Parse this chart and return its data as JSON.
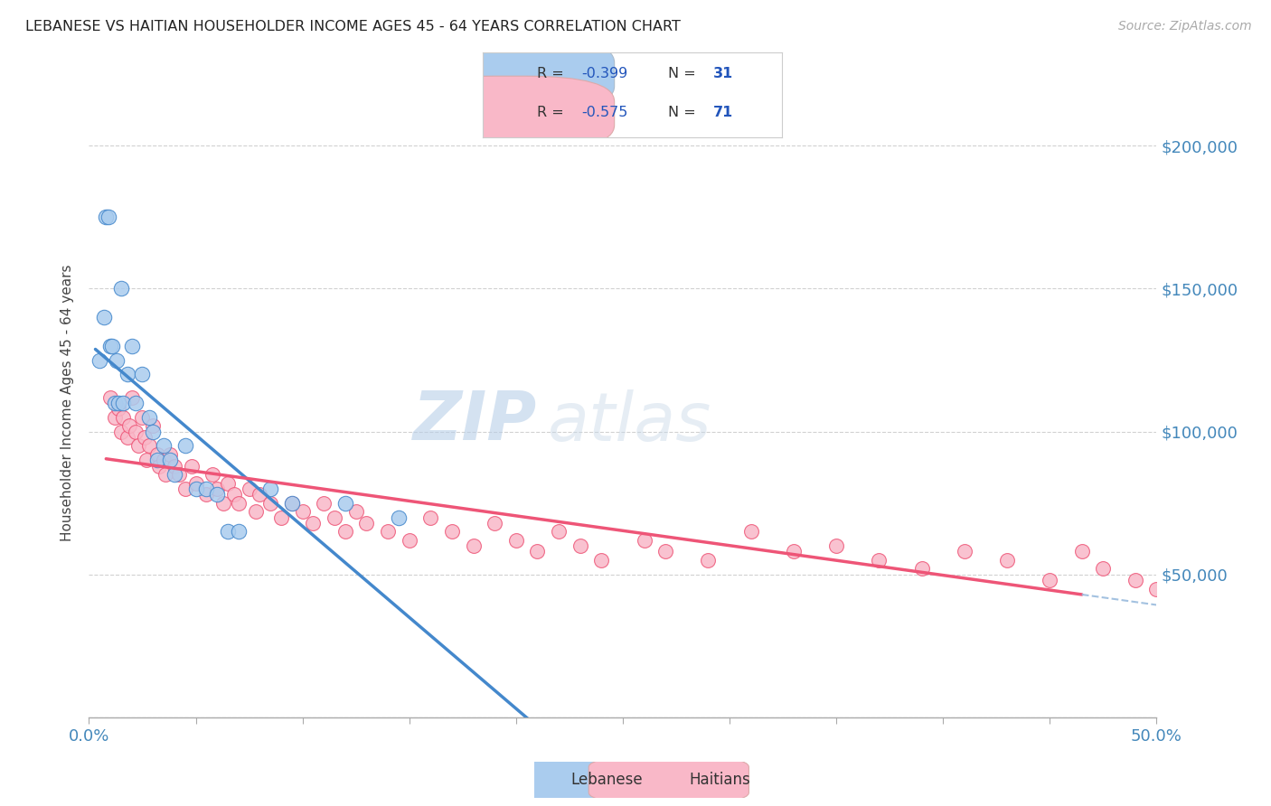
{
  "title": "LEBANESE VS HAITIAN HOUSEHOLDER INCOME AGES 45 - 64 YEARS CORRELATION CHART",
  "source": "Source: ZipAtlas.com",
  "ylabel": "Householder Income Ages 45 - 64 years",
  "xlim": [
    0.0,
    0.5
  ],
  "ylim": [
    0,
    220000
  ],
  "background_color": "#ffffff",
  "grid_color": "#cccccc",
  "watermark_zip": "ZIP",
  "watermark_atlas": "atlas",
  "lebanese_color": "#aaccee",
  "haitian_color": "#f9b8c8",
  "lebanese_line_color": "#4488cc",
  "haitian_line_color": "#ee5577",
  "dash_color": "#99bbdd",
  "lebanese_x": [
    0.005,
    0.007,
    0.008,
    0.009,
    0.01,
    0.011,
    0.012,
    0.013,
    0.014,
    0.015,
    0.016,
    0.018,
    0.02,
    0.022,
    0.025,
    0.028,
    0.03,
    0.032,
    0.035,
    0.038,
    0.04,
    0.045,
    0.05,
    0.055,
    0.06,
    0.065,
    0.07,
    0.085,
    0.095,
    0.12,
    0.145
  ],
  "lebanese_y": [
    125000,
    140000,
    175000,
    175000,
    130000,
    130000,
    110000,
    125000,
    110000,
    150000,
    110000,
    120000,
    130000,
    110000,
    120000,
    105000,
    100000,
    90000,
    95000,
    90000,
    85000,
    95000,
    80000,
    80000,
    78000,
    65000,
    65000,
    80000,
    75000,
    75000,
    70000
  ],
  "haitian_x": [
    0.01,
    0.012,
    0.014,
    0.015,
    0.016,
    0.018,
    0.019,
    0.02,
    0.022,
    0.023,
    0.025,
    0.026,
    0.027,
    0.028,
    0.03,
    0.032,
    0.033,
    0.035,
    0.036,
    0.038,
    0.04,
    0.042,
    0.045,
    0.048,
    0.05,
    0.055,
    0.058,
    0.06,
    0.063,
    0.065,
    0.068,
    0.07,
    0.075,
    0.078,
    0.08,
    0.085,
    0.09,
    0.095,
    0.1,
    0.105,
    0.11,
    0.115,
    0.12,
    0.125,
    0.13,
    0.14,
    0.15,
    0.16,
    0.17,
    0.18,
    0.19,
    0.2,
    0.21,
    0.22,
    0.23,
    0.24,
    0.26,
    0.27,
    0.29,
    0.31,
    0.33,
    0.35,
    0.37,
    0.39,
    0.41,
    0.43,
    0.45,
    0.465,
    0.475,
    0.49,
    0.5
  ],
  "haitian_y": [
    112000,
    105000,
    108000,
    100000,
    105000,
    98000,
    102000,
    112000,
    100000,
    95000,
    105000,
    98000,
    90000,
    95000,
    102000,
    92000,
    88000,
    90000,
    85000,
    92000,
    88000,
    85000,
    80000,
    88000,
    82000,
    78000,
    85000,
    80000,
    75000,
    82000,
    78000,
    75000,
    80000,
    72000,
    78000,
    75000,
    70000,
    75000,
    72000,
    68000,
    75000,
    70000,
    65000,
    72000,
    68000,
    65000,
    62000,
    70000,
    65000,
    60000,
    68000,
    62000,
    58000,
    65000,
    60000,
    55000,
    62000,
    58000,
    55000,
    65000,
    58000,
    60000,
    55000,
    52000,
    58000,
    55000,
    48000,
    58000,
    52000,
    48000,
    45000
  ]
}
